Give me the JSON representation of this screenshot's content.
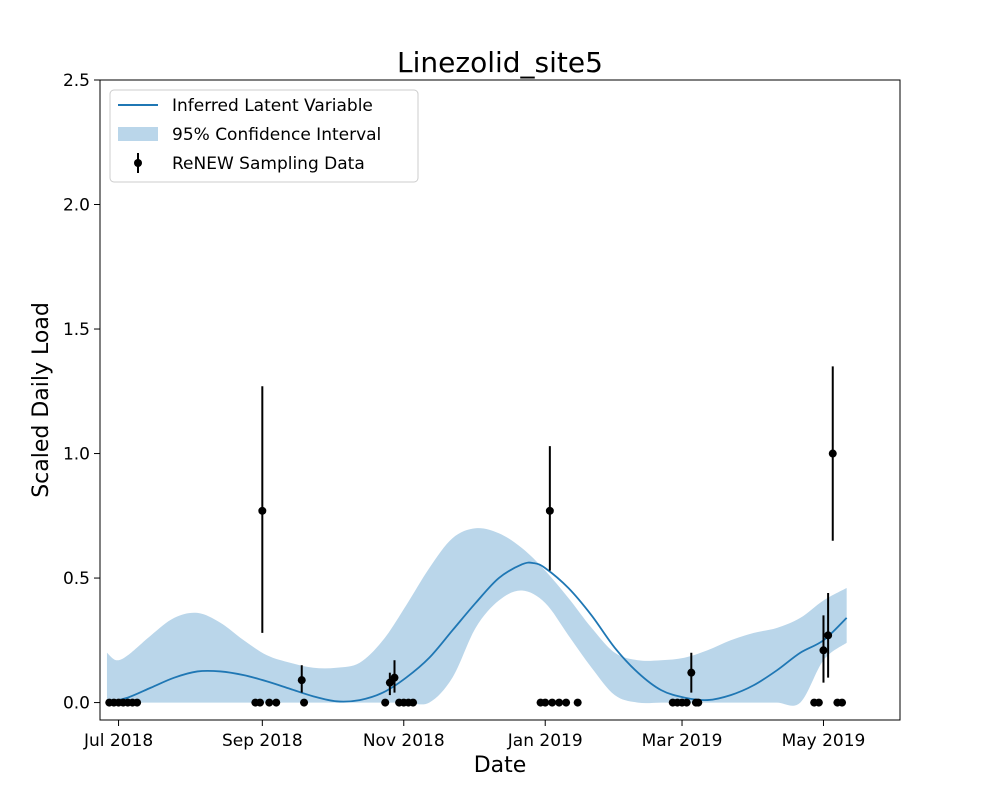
{
  "chart_data": {
    "type": "line",
    "title": "Linezolid_site5",
    "xlabel": "Date",
    "ylabel": "Scaled Daily Load",
    "x_axis": "date",
    "xlim": [
      "2018-06-23",
      "2019-06-03"
    ],
    "ylim": [
      -0.07,
      2.5
    ],
    "yticks": [
      0.0,
      0.5,
      1.0,
      1.5,
      2.0,
      2.5
    ],
    "ytick_labels": [
      "0.0",
      "0.5",
      "1.0",
      "1.5",
      "2.0",
      "2.5"
    ],
    "xticks": [
      "2018-07-01",
      "2018-09-01",
      "2018-11-01",
      "2019-01-01",
      "2019-03-01",
      "2019-05-01"
    ],
    "xtick_labels": [
      "Jul 2018",
      "Sep 2018",
      "Nov 2018",
      "Jan 2019",
      "Mar 2019",
      "May 2019"
    ],
    "grid": false,
    "legend_position": "upper-left",
    "legend": {
      "line": "Inferred Latent Variable",
      "band": "95% Confidence Interval",
      "points": "ReNEW Sampling Data"
    },
    "colors": {
      "line": "#1f77b4",
      "band": "#bad6ea",
      "points": "#000000"
    },
    "latent_variable": {
      "name": "Inferred Latent Variable",
      "x": [
        "2018-06-26",
        "2018-07-05",
        "2018-07-15",
        "2018-07-25",
        "2018-08-04",
        "2018-08-14",
        "2018-08-24",
        "2018-09-03",
        "2018-09-13",
        "2018-09-23",
        "2018-10-03",
        "2018-10-13",
        "2018-10-23",
        "2018-11-02",
        "2018-11-12",
        "2018-11-22",
        "2018-12-02",
        "2018-12-12",
        "2018-12-22",
        "2018-12-27",
        "2019-01-01",
        "2019-01-11",
        "2019-01-21",
        "2019-01-31",
        "2019-02-10",
        "2019-02-20",
        "2019-03-02",
        "2019-03-12",
        "2019-03-22",
        "2019-04-01",
        "2019-04-11",
        "2019-04-21",
        "2019-05-01",
        "2019-05-11"
      ],
      "y": [
        0.0,
        0.02,
        0.06,
        0.1,
        0.125,
        0.125,
        0.11,
        0.085,
        0.055,
        0.025,
        0.005,
        0.01,
        0.04,
        0.1,
        0.18,
        0.29,
        0.4,
        0.5,
        0.555,
        0.56,
        0.54,
        0.46,
        0.35,
        0.22,
        0.12,
        0.05,
        0.02,
        0.01,
        0.03,
        0.07,
        0.13,
        0.2,
        0.25,
        0.34
      ]
    },
    "confidence_interval": {
      "name": "95% Confidence Interval",
      "x": [
        "2018-06-26",
        "2018-06-30",
        "2018-07-05",
        "2018-07-15",
        "2018-07-25",
        "2018-08-04",
        "2018-08-14",
        "2018-08-24",
        "2018-09-03",
        "2018-09-13",
        "2018-09-23",
        "2018-10-03",
        "2018-10-13",
        "2018-10-23",
        "2018-11-02",
        "2018-11-12",
        "2018-11-22",
        "2018-12-02",
        "2018-12-12",
        "2018-12-22",
        "2019-01-01",
        "2019-01-11",
        "2019-01-21",
        "2019-01-31",
        "2019-02-10",
        "2019-02-20",
        "2019-03-02",
        "2019-03-12",
        "2019-03-22",
        "2019-04-01",
        "2019-04-11",
        "2019-04-21",
        "2019-05-01",
        "2019-05-11"
      ],
      "lower": [
        0.0,
        0.0,
        0.0,
        0.0,
        0.0,
        0.0,
        0.0,
        0.0,
        0.0,
        0.0,
        0.0,
        0.0,
        0.0,
        0.0,
        0.0,
        0.0,
        0.1,
        0.3,
        0.41,
        0.45,
        0.4,
        0.27,
        0.14,
        0.03,
        0.0,
        0.0,
        0.0,
        0.0,
        0.0,
        0.0,
        0.0,
        0.0,
        0.17,
        0.24
      ],
      "upper": [
        0.2,
        0.17,
        0.19,
        0.27,
        0.34,
        0.36,
        0.32,
        0.25,
        0.19,
        0.16,
        0.14,
        0.14,
        0.16,
        0.25,
        0.39,
        0.54,
        0.66,
        0.7,
        0.68,
        0.62,
        0.53,
        0.42,
        0.3,
        0.2,
        0.17,
        0.17,
        0.18,
        0.21,
        0.25,
        0.28,
        0.3,
        0.34,
        0.41,
        0.46
      ]
    },
    "sampling_points": {
      "name": "ReNEW Sampling Data",
      "x": [
        "2018-06-27",
        "2018-06-29",
        "2018-07-01",
        "2018-07-03",
        "2018-07-05",
        "2018-07-07",
        "2018-07-09",
        "2018-08-29",
        "2018-08-31",
        "2018-09-01",
        "2018-09-04",
        "2018-09-07",
        "2018-09-18",
        "2018-09-19",
        "2018-10-24",
        "2018-10-26",
        "2018-10-28",
        "2018-10-30",
        "2018-11-01",
        "2018-11-03",
        "2018-11-05",
        "2018-12-30",
        "2019-01-01",
        "2019-01-03",
        "2019-01-04",
        "2019-01-07",
        "2019-01-10",
        "2019-01-15",
        "2019-02-25",
        "2019-02-27",
        "2019-03-01",
        "2019-03-03",
        "2019-03-05",
        "2019-03-07",
        "2019-03-08",
        "2019-04-27",
        "2019-04-29",
        "2019-05-01",
        "2019-05-03",
        "2019-05-05",
        "2019-05-07",
        "2019-05-09"
      ],
      "y": [
        0.0,
        0.0,
        0.0,
        0.0,
        0.0,
        0.0,
        0.0,
        0.0,
        0.0,
        0.77,
        0.0,
        0.0,
        0.09,
        0.0,
        0.0,
        0.08,
        0.1,
        0.0,
        0.0,
        0.0,
        0.0,
        0.0,
        0.0,
        0.77,
        0.0,
        0.0,
        0.0,
        0.0,
        0.0,
        0.0,
        0.0,
        0.0,
        0.12,
        0.0,
        0.0,
        0.0,
        0.0,
        0.21,
        0.27,
        1.0,
        0.0,
        0.0
      ],
      "err_low": [
        null,
        null,
        null,
        null,
        null,
        null,
        null,
        null,
        null,
        0.28,
        null,
        null,
        0.04,
        null,
        null,
        0.03,
        0.04,
        null,
        null,
        null,
        null,
        null,
        null,
        0.53,
        null,
        null,
        null,
        null,
        null,
        null,
        null,
        null,
        0.04,
        null,
        null,
        null,
        null,
        0.08,
        0.1,
        0.65,
        null,
        null
      ],
      "err_high": [
        null,
        null,
        null,
        null,
        null,
        null,
        null,
        null,
        null,
        1.27,
        null,
        null,
        0.15,
        null,
        null,
        0.12,
        0.17,
        null,
        null,
        null,
        null,
        null,
        null,
        1.03,
        null,
        null,
        null,
        null,
        null,
        null,
        null,
        null,
        0.2,
        null,
        null,
        null,
        null,
        0.35,
        0.44,
        1.35,
        null,
        null
      ]
    }
  }
}
